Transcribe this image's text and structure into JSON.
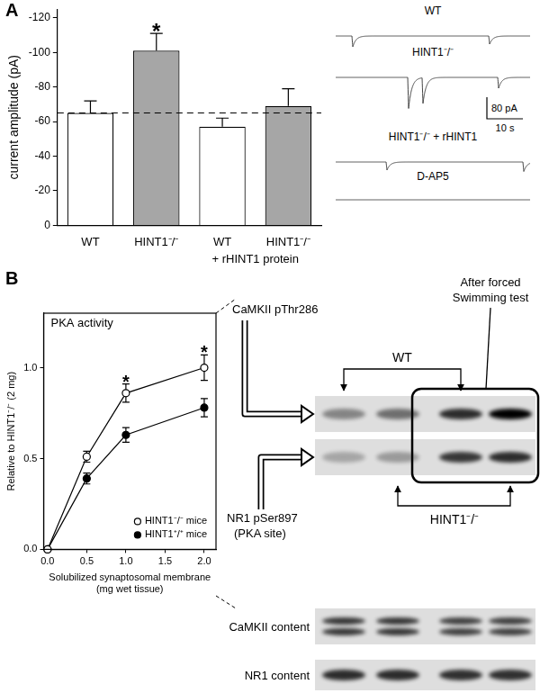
{
  "panels": [
    "A",
    "B"
  ],
  "chart_data": [
    {
      "type": "bar",
      "y_label": "current amplitude (pA)",
      "categories": [
        "WT",
        "HINT1⁻/⁻",
        "WT",
        "HINT1⁻/⁻"
      ],
      "category_groups": [
        null,
        null,
        "+ rHINT1 protein",
        "+ rHINT1 protein"
      ],
      "values": [
        -65,
        -101,
        -57,
        -69
      ],
      "errors": [
        7,
        10,
        5,
        10
      ],
      "significance": [
        null,
        "*",
        null,
        null
      ],
      "colors": [
        "#ffffff",
        "#a6a6a6",
        "#ffffff",
        "#a6a6a6"
      ],
      "reference_line": {
        "value": -65,
        "line_style": "dashed"
      },
      "ylim": [
        0,
        -125
      ],
      "yticks": [
        0,
        -20,
        -40,
        -60,
        -80,
        -100,
        -120
      ],
      "grid": false
    },
    {
      "type": "line",
      "title": "PKA activity",
      "x_label": [
        "Solubilized synaptosomal membrane",
        "(mg wet tissue)"
      ],
      "y_label": "Relative to HINT1⁻/⁻ (2 mg)",
      "x": [
        0,
        0.5,
        1,
        2
      ],
      "series": [
        {
          "name": "HINT1⁻/⁻ mice",
          "color": "#000000",
          "marker": "open_circle",
          "values": [
            0,
            0.51,
            0.86,
            1.0
          ],
          "errors": [
            null,
            0.03,
            0.05,
            0.07
          ]
        },
        {
          "name": "HINT1⁺/⁺ mice",
          "color": "#000000",
          "marker": "filled_circle",
          "values": [
            0,
            0.39,
            0.63,
            0.78
          ],
          "errors": [
            null,
            0.03,
            0.04,
            0.05
          ]
        }
      ],
      "significance": [
        null,
        null,
        "*",
        "*"
      ],
      "xlim": [
        -0.05,
        2.15
      ],
      "xticks": [
        {
          "value": 0,
          "label": "0.0"
        },
        0.5,
        {
          "value": 1,
          "label": "1.0"
        },
        1.5,
        {
          "value": 2,
          "label": "2.0"
        }
      ],
      "ylim": [
        0,
        1.3
      ],
      "yticks": [
        {
          "value": 0,
          "label": "0.0"
        },
        0.5,
        {
          "value": 1,
          "label": "1.0"
        }
      ],
      "legend": "lower right",
      "grid": false
    }
  ],
  "traces": {
    "duration": 54,
    "items": [
      {
        "label": "WT",
        "events": [
          {
            "t": 4.5,
            "amp": -40
          },
          {
            "t": 42.5,
            "amp": -30
          }
        ]
      },
      {
        "label": "HINT1⁻/⁻",
        "events": [
          {
            "t": 20,
            "amp": -115
          },
          {
            "t": 24,
            "amp": -95
          },
          {
            "t": 45,
            "amp": -40
          }
        ]
      },
      {
        "label": "HINT1⁻/⁻ + rHINT1",
        "events": [
          {
            "t": 14,
            "amp": -30
          },
          {
            "t": 52,
            "amp": -35
          }
        ]
      },
      {
        "label": "D-AP5",
        "events": []
      }
    ],
    "scale_bar": {
      "current": {
        "value": 80,
        "label": "80 pA"
      },
      "time": {
        "value": 10,
        "label": "10 s"
      }
    }
  },
  "blot": {
    "phospho_rows": [
      [
        "CaMKII pThr286"
      ],
      [
        "NR1 pSer897",
        "(PKA site)"
      ]
    ],
    "groups": [
      "WT",
      "HINT1⁻/⁻"
    ],
    "condition": [
      "After forced",
      "Swimming test"
    ],
    "content_rows": [
      "CaMKII content",
      "NR1 content"
    ]
  }
}
